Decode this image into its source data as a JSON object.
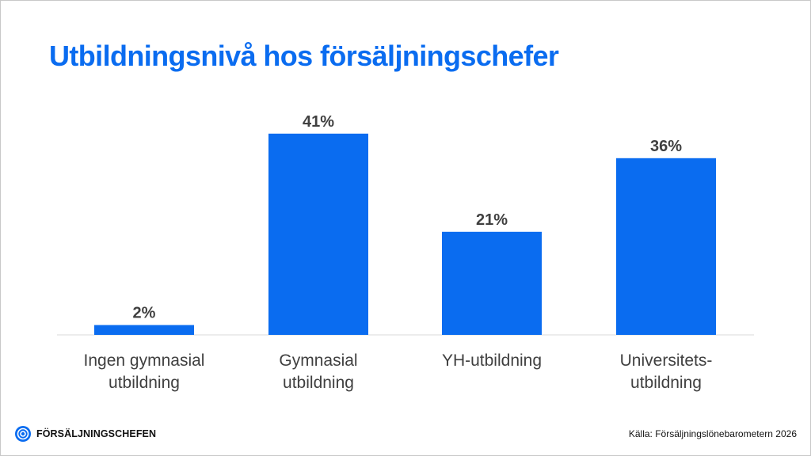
{
  "title": "Utbildningsnivå hos försäljningschefer",
  "brand": {
    "name": "FÖRSÄLJNINGSCHEFEN"
  },
  "source": "Källa: Försäljningslönebarometern 2026",
  "colors": {
    "bar": "#0a6cf0",
    "title": "#0a6cf0",
    "axis": "#d9d9d9",
    "label": "#404040",
    "value": "#404040"
  },
  "chart_data": {
    "type": "bar",
    "categories": [
      [
        "Ingen gymnasial",
        "utbildning"
      ],
      [
        "Gymnasial",
        "utbildning"
      ],
      [
        "YH-utbildning"
      ],
      [
        "Universitets-",
        "utbildning"
      ]
    ],
    "values": [
      2,
      41,
      21,
      36
    ],
    "data_labels": [
      "2%",
      "41%",
      "21%",
      "36%"
    ],
    "unit": "%",
    "title": "Utbildningsnivå hos försäljningschefer",
    "grid": false,
    "legend": "none"
  }
}
